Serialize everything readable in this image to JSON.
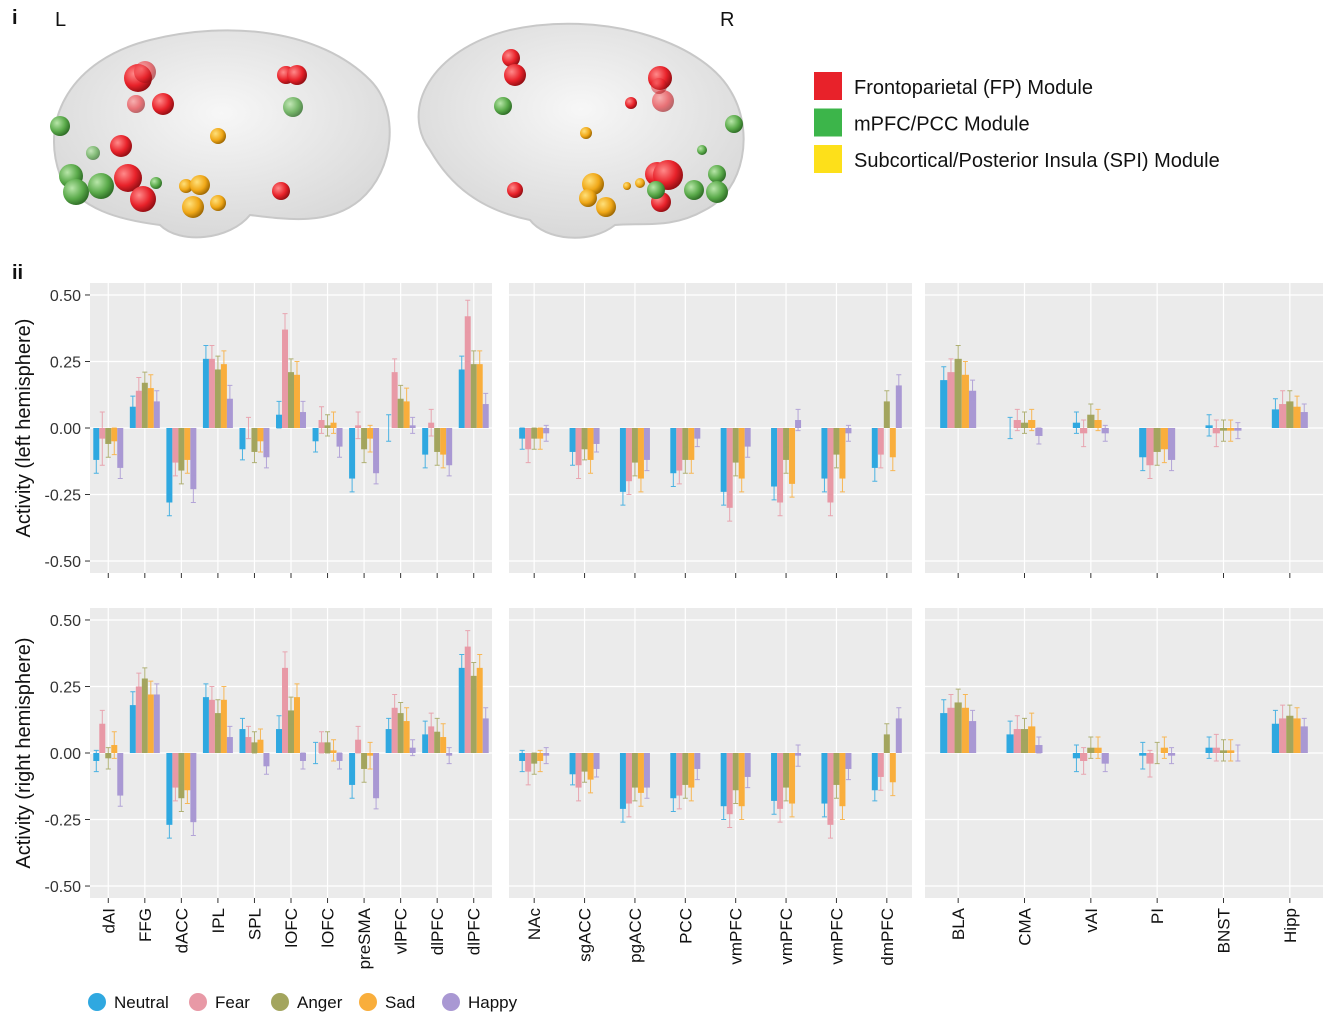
{
  "panel_labels": [
    "i",
    "ii"
  ],
  "hemisphere_labels": [
    "L",
    "R"
  ],
  "module_legend": [
    {
      "label": "Frontoparietal (FP) Module",
      "color": "#e8222a"
    },
    {
      "label": "mPFC/PCC Module",
      "color": "#3cb54a"
    },
    {
      "label": "Subcortical/Posterior Insula (SPI) Module",
      "color": "#fde01a"
    }
  ],
  "chart_data": {
    "type": "bar",
    "series": [
      {
        "name": "Neutral",
        "color": "#2fa8e0"
      },
      {
        "name": "Fear",
        "color": "#e899a6"
      },
      {
        "name": "Anger",
        "color": "#a3a55e"
      },
      {
        "name": "Sad",
        "color": "#f9ae3c"
      },
      {
        "name": "Happy",
        "color": "#a998d3"
      }
    ],
    "ylim": [
      -0.545,
      0.545
    ],
    "yticks": [
      {
        "value": -0.5,
        "label": "-0.50"
      },
      {
        "value": -0.25,
        "label": "-0.25"
      },
      {
        "value": 0,
        "label": "0.00"
      },
      {
        "value": 0.25,
        "label": "0.25"
      },
      {
        "value": 0.5,
        "label": "0.50"
      }
    ],
    "grid": true,
    "groups": [
      {
        "categories": [
          "dAI",
          "FFG",
          "dACC",
          "IPL",
          "SPL",
          "lOFC",
          "lOFC",
          "preSMA",
          "vlPFC",
          "dlPFC",
          "dlPFC"
        ]
      },
      {
        "categories": [
          "NAc",
          "sgACC",
          "pgACC",
          "PCC",
          "vmPFC",
          "vmPFC",
          "vmPFC",
          "dmPFC"
        ]
      },
      {
        "categories": [
          "BLA",
          "CMA",
          "vAI",
          "PI",
          "BNST",
          "Hipp"
        ]
      }
    ],
    "rows": [
      {
        "ylabel": "Activity (left hemisphere)",
        "groups": [
          {
            "values": [
              [
                -0.12,
                0.08,
                -0.28,
                0.26,
                -0.08,
                0.05,
                -0.05,
                -0.19,
                0.0,
                -0.1,
                0.22
              ],
              [
                -0.04,
                0.14,
                -0.13,
                0.26,
                0.0,
                0.37,
                0.03,
                0.01,
                0.21,
                0.02,
                0.42
              ],
              [
                -0.06,
                0.17,
                -0.16,
                0.22,
                -0.09,
                0.21,
                0.01,
                -0.08,
                0.11,
                -0.09,
                0.24
              ],
              [
                -0.05,
                0.15,
                -0.12,
                0.24,
                -0.05,
                0.2,
                0.02,
                -0.04,
                0.1,
                -0.1,
                0.24
              ],
              [
                -0.15,
                0.1,
                -0.23,
                0.11,
                -0.11,
                0.06,
                -0.07,
                -0.17,
                0.01,
                -0.14,
                0.09
              ]
            ],
            "errors": [
              [
                0.05,
                0.04,
                0.05,
                0.05,
                0.04,
                0.05,
                0.04,
                0.05,
                0.05,
                0.05,
                0.05
              ],
              [
                0.1,
                0.05,
                0.05,
                0.05,
                0.04,
                0.06,
                0.05,
                0.05,
                0.05,
                0.05,
                0.06
              ],
              [
                0.05,
                0.04,
                0.05,
                0.05,
                0.04,
                0.05,
                0.04,
                0.05,
                0.05,
                0.05,
                0.05
              ],
              [
                0.05,
                0.05,
                0.05,
                0.05,
                0.04,
                0.05,
                0.04,
                0.05,
                0.05,
                0.05,
                0.05
              ],
              [
                0.04,
                0.04,
                0.05,
                0.05,
                0.04,
                0.04,
                0.04,
                0.04,
                0.03,
                0.04,
                0.04
              ]
            ]
          },
          {
            "values": [
              [
                -0.04,
                -0.09,
                -0.24,
                -0.17,
                -0.24,
                -0.22,
                -0.19,
                -0.15
              ],
              [
                -0.08,
                -0.14,
                -0.2,
                -0.16,
                -0.3,
                -0.28,
                -0.28,
                -0.1
              ],
              [
                -0.04,
                -0.08,
                -0.13,
                -0.12,
                -0.13,
                -0.12,
                -0.1,
                0.1
              ],
              [
                -0.04,
                -0.12,
                -0.19,
                -0.12,
                -0.19,
                -0.21,
                -0.19,
                -0.11
              ],
              [
                -0.02,
                -0.06,
                -0.12,
                -0.04,
                -0.07,
                0.03,
                -0.02,
                0.16
              ]
            ],
            "errors": [
              [
                0.04,
                0.05,
                0.05,
                0.05,
                0.05,
                0.05,
                0.05,
                0.05
              ],
              [
                0.05,
                0.05,
                0.05,
                0.05,
                0.05,
                0.05,
                0.05,
                0.05
              ],
              [
                0.04,
                0.04,
                0.05,
                0.05,
                0.05,
                0.05,
                0.05,
                0.04
              ],
              [
                0.04,
                0.05,
                0.05,
                0.05,
                0.05,
                0.05,
                0.05,
                0.05
              ],
              [
                0.03,
                0.03,
                0.04,
                0.03,
                0.04,
                0.04,
                0.03,
                0.04
              ]
            ]
          },
          {
            "values": [
              [
                0.18,
                0.0,
                0.02,
                -0.11,
                0.01,
                0.07
              ],
              [
                0.21,
                0.03,
                -0.02,
                -0.14,
                -0.02,
                0.09
              ],
              [
                0.26,
                0.02,
                0.05,
                -0.09,
                -0.01,
                0.1
              ],
              [
                0.2,
                0.03,
                0.03,
                -0.08,
                -0.01,
                0.08
              ],
              [
                0.14,
                -0.03,
                -0.02,
                -0.12,
                -0.01,
                0.06
              ]
            ],
            "errors": [
              [
                0.05,
                0.04,
                0.04,
                0.05,
                0.04,
                0.04
              ],
              [
                0.05,
                0.04,
                0.05,
                0.05,
                0.05,
                0.05
              ],
              [
                0.05,
                0.04,
                0.04,
                0.05,
                0.04,
                0.04
              ],
              [
                0.05,
                0.04,
                0.04,
                0.05,
                0.04,
                0.04
              ],
              [
                0.04,
                0.03,
                0.03,
                0.04,
                0.03,
                0.03
              ]
            ]
          }
        ]
      },
      {
        "ylabel": "Activity (right hemisphere)",
        "groups": [
          {
            "values": [
              [
                -0.03,
                0.18,
                -0.27,
                0.21,
                0.09,
                0.09,
                0.0,
                -0.12,
                0.09,
                0.07,
                0.32
              ],
              [
                0.11,
                0.25,
                -0.13,
                0.2,
                0.06,
                0.32,
                0.04,
                0.05,
                0.17,
                0.1,
                0.4
              ],
              [
                -0.02,
                0.28,
                -0.17,
                0.15,
                0.04,
                0.16,
                0.04,
                -0.06,
                0.15,
                0.08,
                0.29
              ],
              [
                0.03,
                0.22,
                -0.14,
                0.2,
                0.05,
                0.21,
                0.01,
                -0.01,
                0.12,
                0.06,
                0.32
              ],
              [
                -0.16,
                0.22,
                -0.26,
                0.06,
                -0.05,
                -0.03,
                -0.03,
                -0.17,
                0.02,
                -0.01,
                0.13
              ]
            ],
            "errors": [
              [
                0.04,
                0.05,
                0.05,
                0.05,
                0.04,
                0.05,
                0.04,
                0.05,
                0.04,
                0.05,
                0.05
              ],
              [
                0.05,
                0.05,
                0.05,
                0.05,
                0.04,
                0.06,
                0.04,
                0.05,
                0.05,
                0.05,
                0.06
              ],
              [
                0.04,
                0.04,
                0.05,
                0.05,
                0.04,
                0.05,
                0.04,
                0.05,
                0.04,
                0.05,
                0.05
              ],
              [
                0.05,
                0.05,
                0.05,
                0.05,
                0.04,
                0.05,
                0.04,
                0.05,
                0.05,
                0.05,
                0.05
              ],
              [
                0.04,
                0.04,
                0.05,
                0.04,
                0.03,
                0.03,
                0.03,
                0.04,
                0.03,
                0.03,
                0.04
              ]
            ]
          },
          {
            "values": [
              [
                -0.03,
                -0.08,
                -0.21,
                -0.17,
                -0.2,
                -0.18,
                -0.19,
                -0.14
              ],
              [
                -0.07,
                -0.13,
                -0.19,
                -0.16,
                -0.23,
                -0.21,
                -0.27,
                -0.09
              ],
              [
                -0.04,
                -0.07,
                -0.13,
                -0.12,
                -0.14,
                -0.13,
                -0.12,
                0.07
              ],
              [
                -0.03,
                -0.1,
                -0.15,
                -0.13,
                -0.2,
                -0.19,
                -0.2,
                -0.11
              ],
              [
                -0.01,
                -0.06,
                -0.13,
                -0.06,
                -0.09,
                -0.01,
                -0.06,
                0.13
              ]
            ],
            "errors": [
              [
                0.04,
                0.04,
                0.05,
                0.05,
                0.05,
                0.05,
                0.05,
                0.04
              ],
              [
                0.05,
                0.05,
                0.05,
                0.05,
                0.05,
                0.05,
                0.05,
                0.05
              ],
              [
                0.04,
                0.04,
                0.05,
                0.05,
                0.05,
                0.05,
                0.05,
                0.04
              ],
              [
                0.04,
                0.05,
                0.05,
                0.05,
                0.05,
                0.05,
                0.05,
                0.05
              ],
              [
                0.03,
                0.03,
                0.04,
                0.04,
                0.04,
                0.04,
                0.04,
                0.04
              ]
            ]
          },
          {
            "values": [
              [
                0.15,
                0.07,
                -0.02,
                -0.01,
                0.02,
                0.11
              ],
              [
                0.17,
                0.09,
                -0.03,
                -0.04,
                0.02,
                0.13
              ],
              [
                0.19,
                0.09,
                0.02,
                0.0,
                0.01,
                0.14
              ],
              [
                0.17,
                0.1,
                0.02,
                0.02,
                0.01,
                0.13
              ],
              [
                0.12,
                0.03,
                -0.04,
                -0.01,
                0.0,
                0.1
              ]
            ],
            "errors": [
              [
                0.05,
                0.05,
                0.05,
                0.05,
                0.04,
                0.05
              ],
              [
                0.05,
                0.05,
                0.05,
                0.05,
                0.05,
                0.05
              ],
              [
                0.05,
                0.04,
                0.04,
                0.04,
                0.04,
                0.04
              ],
              [
                0.05,
                0.05,
                0.04,
                0.04,
                0.04,
                0.04
              ],
              [
                0.04,
                0.03,
                0.03,
                0.03,
                0.03,
                0.03
              ]
            ]
          }
        ]
      }
    ]
  }
}
